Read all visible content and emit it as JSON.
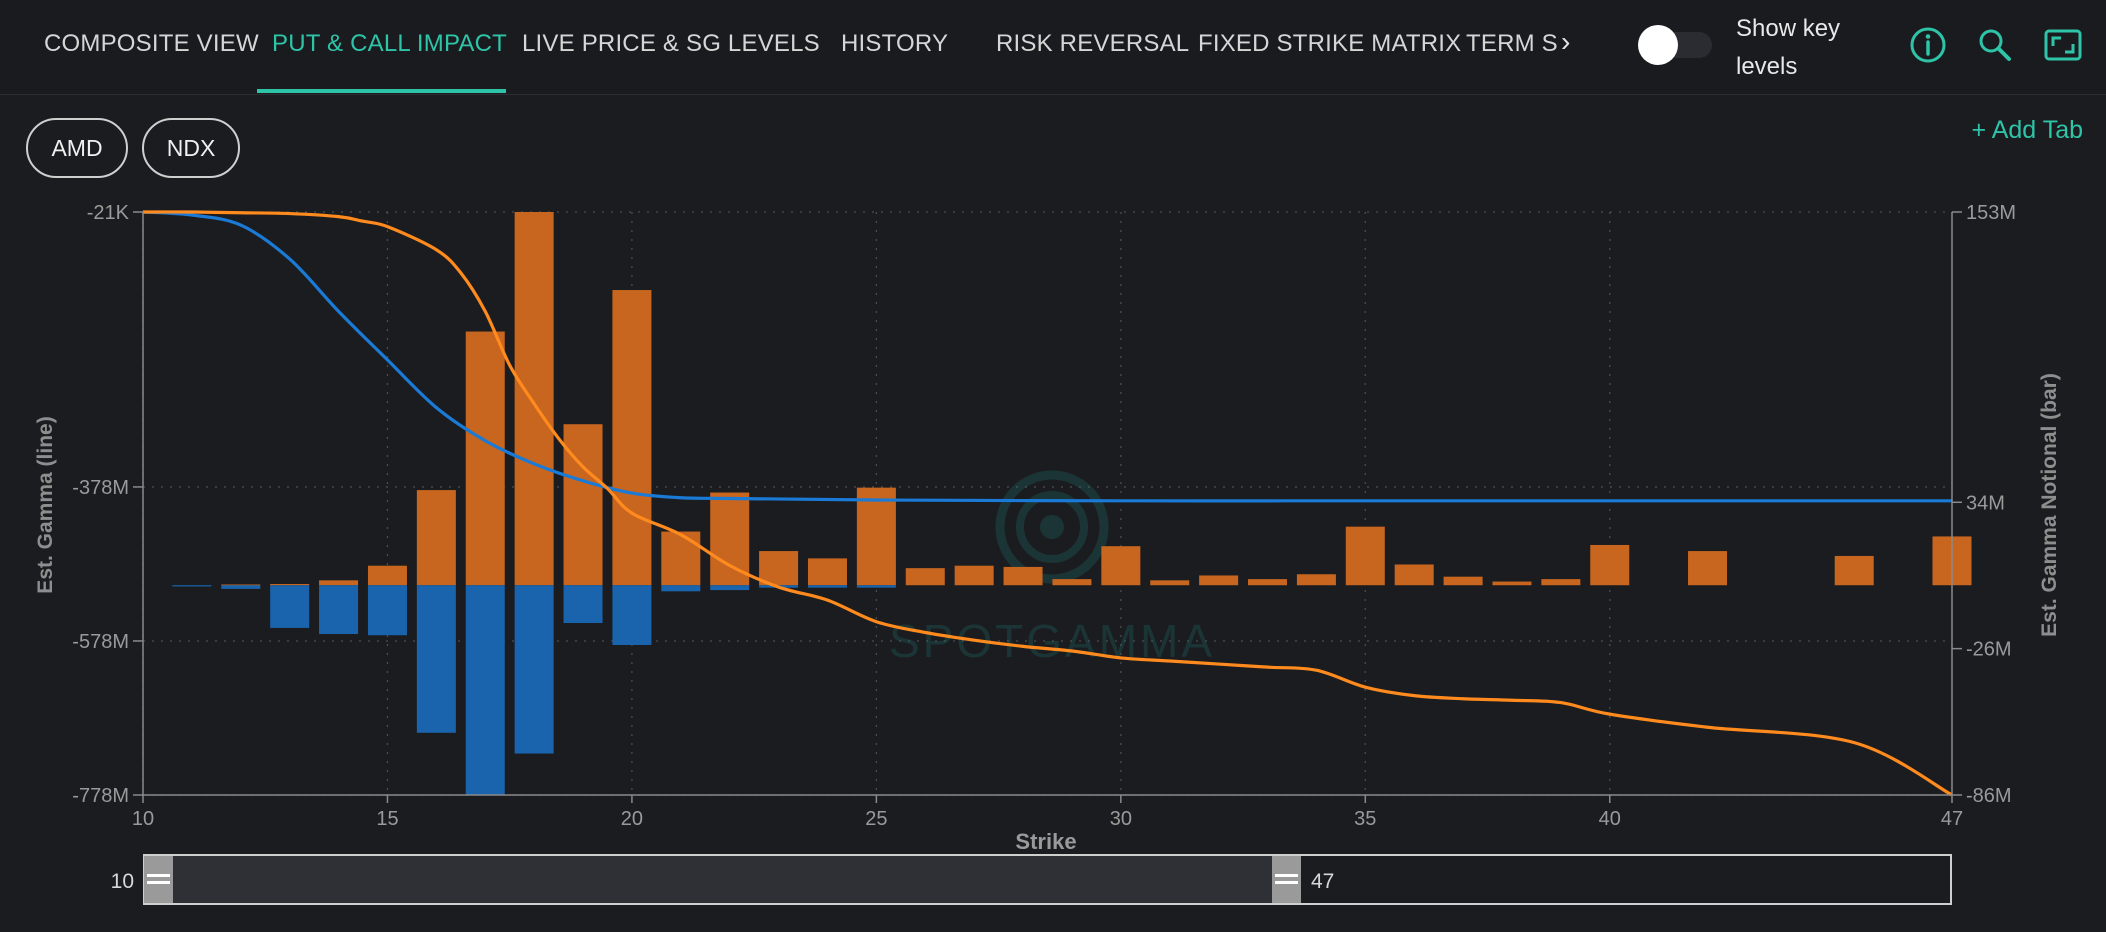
{
  "tabs": [
    {
      "label": "COMPOSITE VIEW",
      "active": false
    },
    {
      "label": "PUT & CALL IMPACT",
      "active": true
    },
    {
      "label": "LIVE PRICE & SG LEVELS",
      "active": false
    },
    {
      "label": "HISTORY",
      "active": false
    },
    {
      "label": "RISK REVERSAL",
      "active": false
    },
    {
      "label": "FIXED STRIKE MATRIX",
      "active": false
    },
    {
      "label": "TERM S",
      "active": false
    }
  ],
  "toggle": {
    "label": "Show key levels",
    "checked": false
  },
  "icons": [
    "info-icon",
    "zoom-icon",
    "expand-icon",
    "chevron-right-icon"
  ],
  "ticker_tabs": [
    "AMD",
    "NDX"
  ],
  "add_tab_label": "+ Add Tab",
  "colors": {
    "accent": "#2ec4a8",
    "call": "#c8661f",
    "put": "#1a64ad",
    "call_line": "#ff8a1e",
    "put_line": "#1a7ad6"
  },
  "range_slider": {
    "min_label": "10",
    "max_label": "47"
  },
  "chart_data": {
    "type": "bar+line",
    "watermark": "SPOTGAMMA",
    "xlabel": "Strike",
    "ylabel_left": "Est. Gamma (line)",
    "ylabel_right": "Est. Gamma Notional (bar)",
    "xlim": [
      10,
      47
    ],
    "x_ticks": [
      "10",
      "15",
      "20",
      "25",
      "30",
      "35",
      "40",
      "47"
    ],
    "left_ylim": [
      -778,
      -21
    ],
    "left_ticks": [
      "-21K",
      "-378M",
      "-578M",
      "-778M"
    ],
    "right_ylim": [
      -86,
      153
    ],
    "right_ticks": [
      "153M",
      "34M",
      "-26M",
      "-86M"
    ],
    "call_bars": {
      "strikes": [
        12,
        13,
        14,
        15,
        16,
        17,
        18,
        19,
        20,
        21,
        22,
        23,
        24,
        25,
        26,
        27,
        28,
        29,
        30,
        31,
        32,
        33,
        34,
        35,
        36,
        37,
        38,
        39,
        40,
        42,
        45,
        47
      ],
      "values": [
        0.3,
        0.5,
        2,
        8,
        39,
        104,
        153,
        66,
        121,
        22,
        38,
        14,
        11,
        40,
        7,
        8,
        7.5,
        2.5,
        16,
        2,
        4,
        2.5,
        4.5,
        24,
        8.5,
        3.5,
        1.5,
        2.5,
        16.5,
        14,
        12,
        20
      ]
    },
    "put_bars": {
      "strikes": [
        11,
        12,
        13,
        14,
        15,
        16,
        17,
        18,
        19,
        20,
        21,
        22,
        23,
        24,
        25
      ],
      "values": [
        -0.5,
        -1.5,
        -17.5,
        -20,
        -20.5,
        -60.5,
        -86,
        -69,
        -15.5,
        -24.5,
        -2.5,
        -2,
        -1,
        -1,
        -1
      ]
    },
    "call_line": {
      "x": [
        10,
        11,
        12,
        13,
        14,
        14.5,
        15,
        16,
        16.5,
        17,
        17.5,
        18,
        18.5,
        19,
        19.5,
        20,
        21,
        22,
        23,
        24,
        25,
        26,
        27,
        28,
        29,
        30,
        31,
        32,
        33,
        34,
        35,
        36,
        37,
        38,
        39,
        40,
        42,
        45,
        47
      ],
      "values": [
        -21,
        -21,
        -22,
        -23,
        -27,
        -33,
        -40,
        -70,
        -100,
        -150,
        -220,
        -270,
        -315,
        -352,
        -380,
        -412,
        -440,
        -480,
        -508,
        -525,
        -553,
        -567,
        -577,
        -585,
        -591,
        -600,
        -604,
        -608,
        -612,
        -616,
        -638,
        -649,
        -653,
        -655,
        -658,
        -673,
        -690,
        -710,
        -778
      ]
    },
    "put_line": {
      "x": [
        10,
        11,
        12,
        13,
        14,
        15,
        16,
        17,
        18,
        19,
        20,
        21,
        22,
        25,
        30,
        35,
        40,
        47
      ],
      "values": [
        -21,
        -25,
        -38,
        -82,
        -150,
        -213,
        -275,
        -318,
        -348,
        -370,
        -386,
        -392,
        -393,
        -395,
        -396,
        -396,
        -396,
        -396
      ]
    }
  }
}
